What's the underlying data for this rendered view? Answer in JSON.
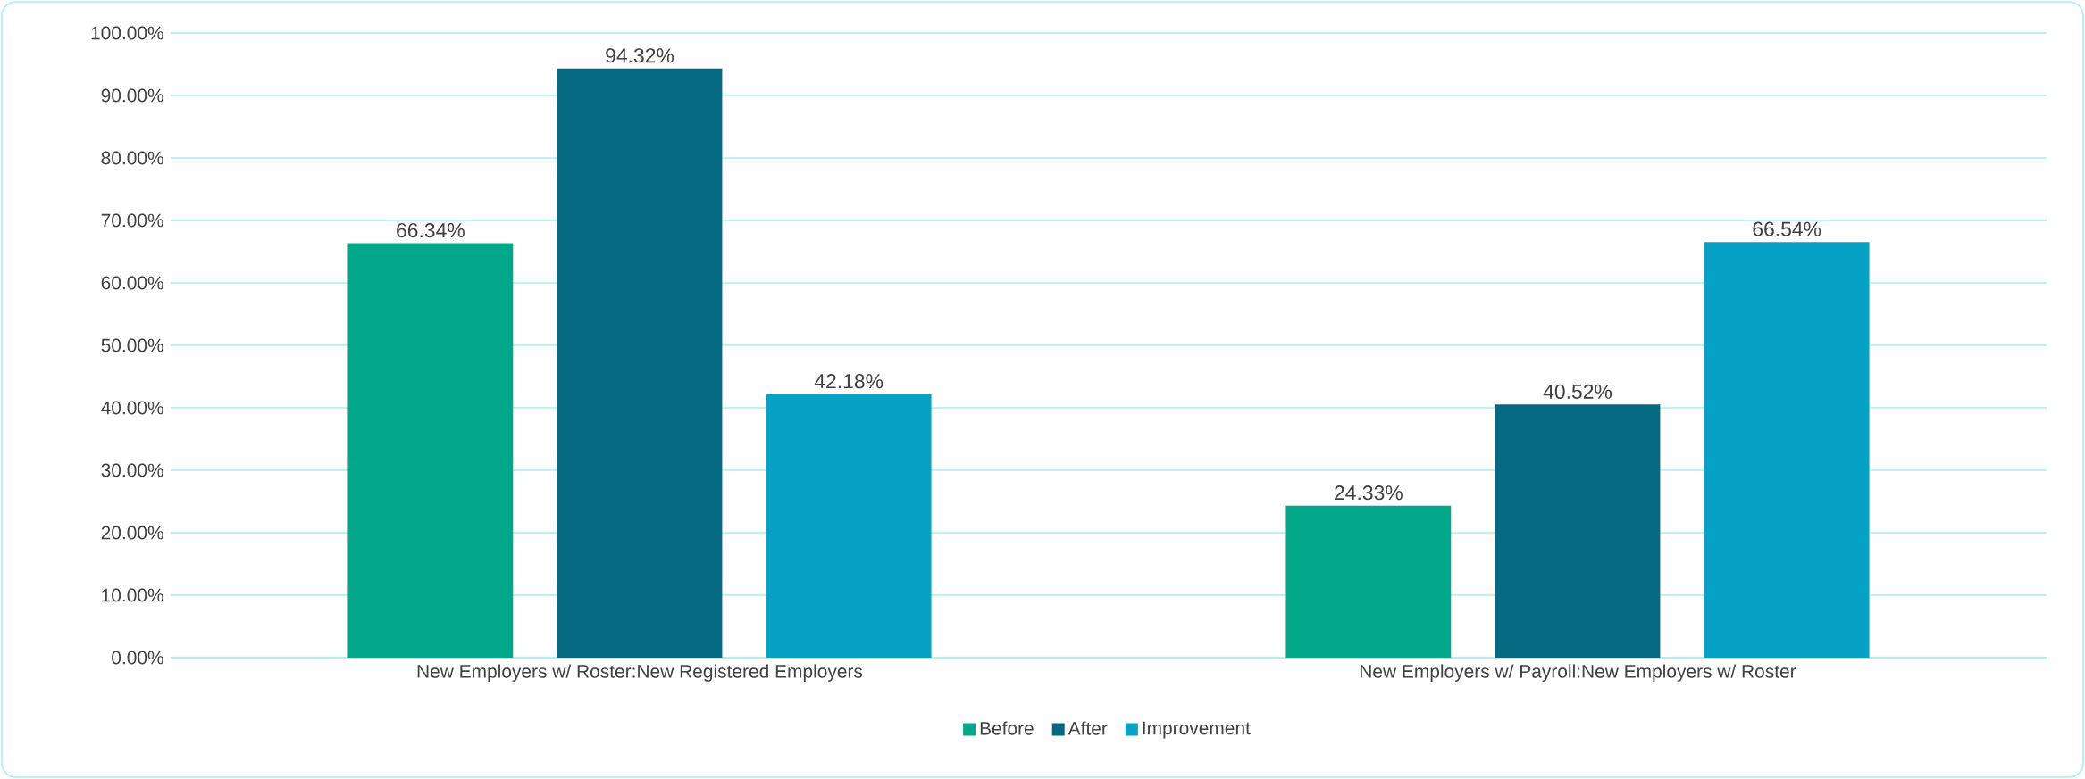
{
  "chart_data": {
    "type": "bar",
    "categories": [
      "New Employers w/ Roster:New Registered Employers",
      "New Employers w/ Payroll:New Employers w/ Roster"
    ],
    "series": [
      {
        "name": "Before",
        "color": "#00a88a",
        "values": [
          66.34,
          24.33
        ],
        "value_labels": [
          "66.34%",
          "24.33%"
        ]
      },
      {
        "name": "After",
        "color": "#036a82",
        "values": [
          94.32,
          40.52
        ],
        "value_labels": [
          "94.32%",
          "40.52%"
        ]
      },
      {
        "name": "Improvement",
        "color": "#06a2c6",
        "values": [
          42.18,
          66.54
        ],
        "value_labels": [
          "42.18%",
          "66.54%"
        ]
      }
    ],
    "ylim": [
      0,
      100
    ],
    "yticks": [
      {
        "value": 0,
        "label": "0.00%"
      },
      {
        "value": 10,
        "label": "10.00%"
      },
      {
        "value": 20,
        "label": "20.00%"
      },
      {
        "value": 30,
        "label": "30.00%"
      },
      {
        "value": 40,
        "label": "40.00%"
      },
      {
        "value": 50,
        "label": "50.00%"
      },
      {
        "value": 60,
        "label": "60.00%"
      },
      {
        "value": 70,
        "label": "70.00%"
      },
      {
        "value": 80,
        "label": "80.00%"
      },
      {
        "value": 90,
        "label": "90.00%"
      },
      {
        "value": 100,
        "label": "100.00%"
      }
    ],
    "grid": "y",
    "legend": "bottom"
  }
}
